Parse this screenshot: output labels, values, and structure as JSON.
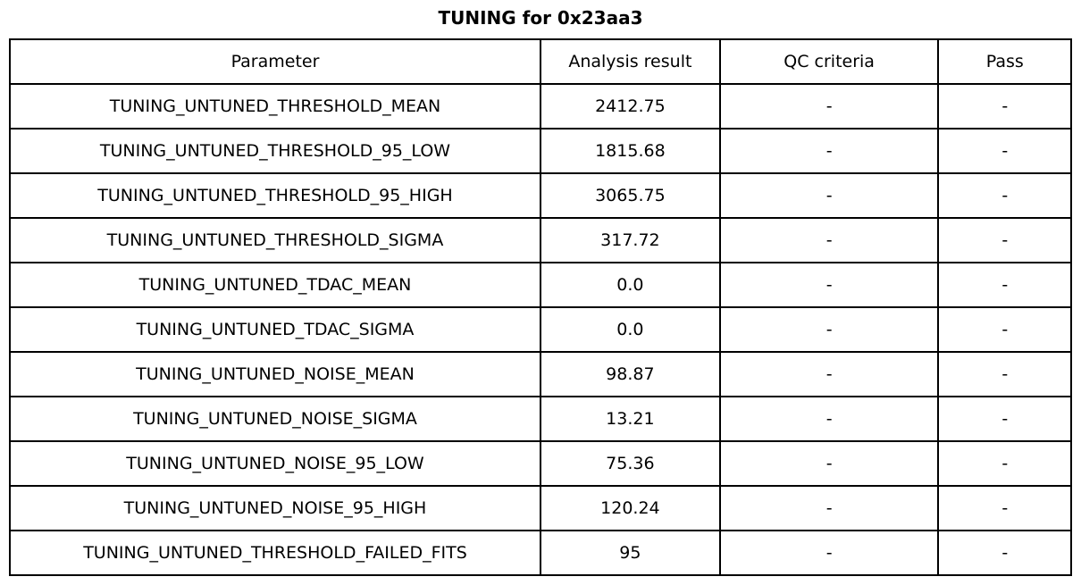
{
  "page": {
    "title": "TUNING for 0x23aa3",
    "background": "#ffffff",
    "border_color": "#000000",
    "text_color": "#000000"
  },
  "chart_data": {
    "type": "table",
    "title": "TUNING for 0x23aa3",
    "columns": [
      "Parameter",
      "Analysis result",
      "QC criteria",
      "Pass"
    ],
    "rows": [
      [
        "TUNING_UNTUNED_THRESHOLD_MEAN",
        "2412.75",
        "-",
        "-"
      ],
      [
        "TUNING_UNTUNED_THRESHOLD_95_LOW",
        "1815.68",
        "-",
        "-"
      ],
      [
        "TUNING_UNTUNED_THRESHOLD_95_HIGH",
        "3065.75",
        "-",
        "-"
      ],
      [
        "TUNING_UNTUNED_THRESHOLD_SIGMA",
        "317.72",
        "-",
        "-"
      ],
      [
        "TUNING_UNTUNED_TDAC_MEAN",
        "0.0",
        "-",
        "-"
      ],
      [
        "TUNING_UNTUNED_TDAC_SIGMA",
        "0.0",
        "-",
        "-"
      ],
      [
        "TUNING_UNTUNED_NOISE_MEAN",
        "98.87",
        "-",
        "-"
      ],
      [
        "TUNING_UNTUNED_NOISE_SIGMA",
        "13.21",
        "-",
        "-"
      ],
      [
        "TUNING_UNTUNED_NOISE_95_LOW",
        "75.36",
        "-",
        "-"
      ],
      [
        "TUNING_UNTUNED_NOISE_95_HIGH",
        "120.24",
        "-",
        "-"
      ],
      [
        "TUNING_UNTUNED_THRESHOLD_FAILED_FITS",
        "95",
        "-",
        "-"
      ]
    ],
    "layout": {
      "grid": "all-cell-borders",
      "header_row": true,
      "cell_text_align": "center",
      "title_position": "top-center"
    }
  },
  "cell_names": [
    "parameter-cell",
    "analysis-result-cell",
    "qc-criteria-cell",
    "pass-cell"
  ],
  "header_names": [
    "column-header-parameter",
    "column-header-analysis-result",
    "column-header-qc-criteria",
    "column-header-pass"
  ]
}
